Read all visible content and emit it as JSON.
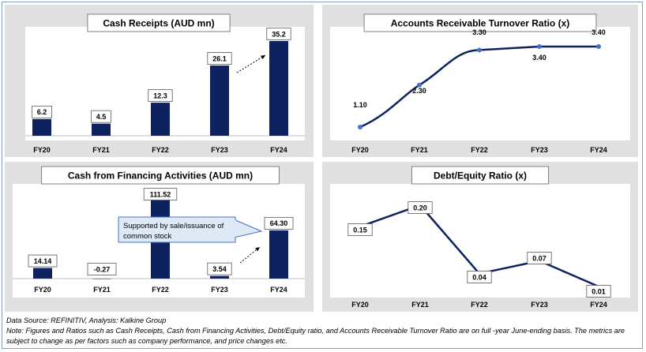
{
  "colors": {
    "bar": "#0f2260",
    "line": "#0f2260",
    "marker": "#4472c4",
    "panel_bg": "#e0e0e0",
    "plot_bg": "#ffffff"
  },
  "chart_data": [
    {
      "id": "cash-receipts",
      "type": "bar",
      "title": "Cash Receipts (AUD mn)",
      "categories": [
        "FY20",
        "FY21",
        "FY22",
        "FY23",
        "FY24"
      ],
      "values": [
        6.2,
        4.5,
        12.3,
        26.1,
        35.2
      ],
      "labels": [
        "6.2",
        "4.5",
        "12.3",
        "26.1",
        "35.2"
      ],
      "ylim": [
        0,
        36
      ],
      "grid": false
    },
    {
      "id": "ar-turnover",
      "type": "line",
      "title": "Accounts Receivable Turnover Ratio (x)",
      "categories": [
        "FY20",
        "FY21",
        "FY22",
        "FY23",
        "FY24"
      ],
      "values": [
        1.1,
        2.3,
        3.3,
        3.4,
        3.4
      ],
      "labels": [
        "1.10",
        "2.30",
        "3.30",
        "3.40",
        "3.40"
      ],
      "ylim": [
        0,
        3.9
      ],
      "grid": false
    },
    {
      "id": "cash-financing",
      "type": "bar",
      "title": "Cash from Financing Activities (AUD mn)",
      "categories": [
        "FY20",
        "FY21",
        "FY22",
        "FY23",
        "FY24"
      ],
      "values": [
        14.14,
        -0.27,
        111.52,
        3.54,
        64.3
      ],
      "labels": [
        "14.14",
        "-0.27",
        "111.52",
        "3.54",
        "64.30"
      ],
      "ylim": [
        0,
        111.52
      ],
      "grid": false,
      "annotation": "Supported by sale/issuance of common stock"
    },
    {
      "id": "debt-equity",
      "type": "line",
      "title": "Debt/Equity Ratio (x)",
      "categories": [
        "FY20",
        "FY21",
        "FY22",
        "FY23",
        "FY24"
      ],
      "values": [
        0.15,
        0.2,
        0.04,
        0.07,
        0.01
      ],
      "labels": [
        "0.15",
        "0.20",
        "0.04",
        "0.07",
        "0.01"
      ],
      "ylim": [
        0.01,
        0.24
      ],
      "grid": false
    }
  ],
  "footnote": {
    "source": "Data Source: REFINITIV, Analysis: Kalkine Group",
    "note": "Note: Figures and Ratios such as Cash Receipts, Cash from Financing Activities, Debt/Equity ratio, and Accounts Receivable Turnover Ratio are on full -year June-ending basis. The metrics are subject to change as per factors such as company performance, and price changes etc."
  }
}
